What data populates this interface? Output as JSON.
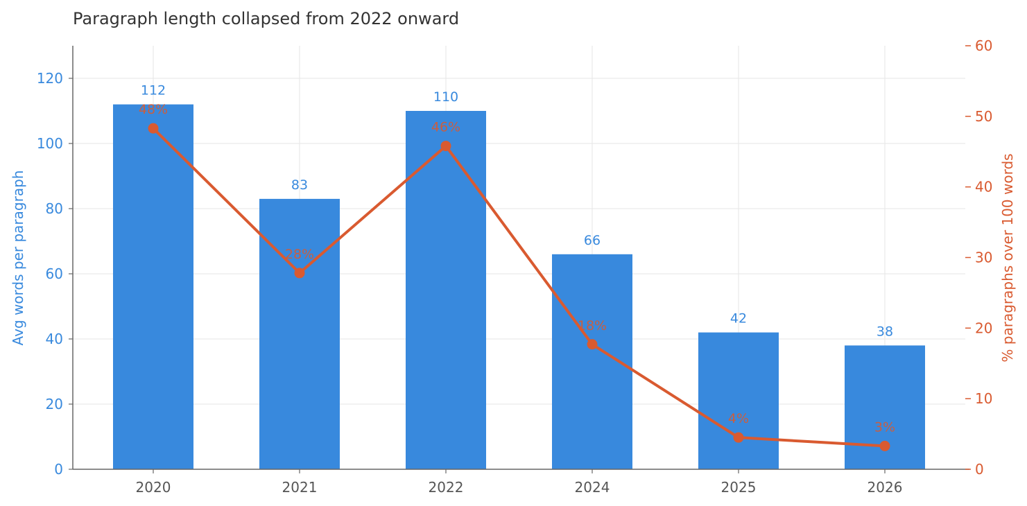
{
  "chart_data": {
    "type": "bar",
    "title": "Paragraph length collapsed from 2022 onward",
    "categories": [
      "2020",
      "2021",
      "2022",
      "2024",
      "2025",
      "2026"
    ],
    "series": [
      {
        "type": "bar",
        "axis": "left",
        "values": [
          112,
          83,
          110,
          66,
          42,
          38
        ],
        "value_labels": [
          "112",
          "83",
          "110",
          "66",
          "42",
          "38"
        ],
        "color": "#3889dd"
      },
      {
        "type": "line",
        "axis": "right",
        "values": [
          48.3,
          27.8,
          45.8,
          17.7,
          4.5,
          3.3
        ],
        "value_labels": [
          "48%",
          "28%",
          "46%",
          "18%",
          "4%",
          "3%"
        ],
        "color": "#d95a30"
      }
    ],
    "y_left": {
      "label": "Avg words per paragraph",
      "range": [
        0,
        130
      ],
      "ticks": [
        0,
        20,
        40,
        60,
        80,
        100,
        120
      ],
      "color": "#3889dd"
    },
    "y_right": {
      "label": "% paragraphs over 100 words",
      "range": [
        0,
        60
      ],
      "ticks": [
        0,
        10,
        20,
        30,
        40,
        50,
        60
      ],
      "color": "#d95a30"
    },
    "grid": true,
    "legend": "none"
  }
}
